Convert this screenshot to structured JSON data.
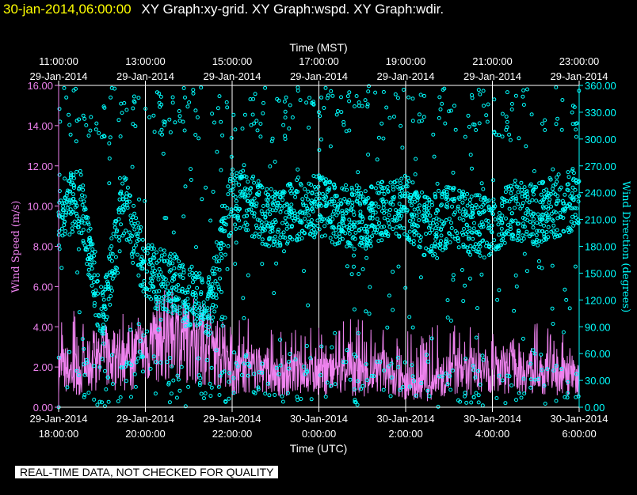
{
  "header": {
    "timestamp": "30-jan-2014,06:00:00",
    "graphs": "XY Graph:xy-grid.  XY Graph:wspd.  XY Graph:wdir."
  },
  "footer": {
    "qc_note": "REAL-TIME DATA, NOT CHECKED FOR QUALITY"
  },
  "chart_data": {
    "type": "scatter",
    "top_axis": {
      "label": "Time (MST)",
      "ticks": [
        {
          "time": "11:00:00",
          "date": "29-Jan-2014"
        },
        {
          "time": "13:00:00",
          "date": "29-Jan-2014"
        },
        {
          "time": "15:00:00",
          "date": "29-Jan-2014"
        },
        {
          "time": "17:00:00",
          "date": "29-Jan-2014"
        },
        {
          "time": "19:00:00",
          "date": "29-Jan-2014"
        },
        {
          "time": "21:00:00",
          "date": "29-Jan-2014"
        },
        {
          "time": "23:00:00",
          "date": "29-Jan-2014"
        }
      ]
    },
    "bottom_axis": {
      "label": "Time (UTC)",
      "ticks": [
        {
          "date": "29-Jan-2014",
          "time": "18:00:00"
        },
        {
          "date": "29-Jan-2014",
          "time": "20:00:00"
        },
        {
          "date": "29-Jan-2014",
          "time": "22:00:00"
        },
        {
          "date": "30-Jan-2014",
          "time": "0:00:00"
        },
        {
          "date": "30-Jan-2014",
          "time": "2:00:00"
        },
        {
          "date": "30-Jan-2014",
          "time": "4:00:00"
        },
        {
          "date": "30-Jan-2014",
          "time": "6:00:00"
        }
      ],
      "range": [
        "2014-01-29 18:00:00",
        "2014-01-30 06:00:00"
      ]
    },
    "left_axis": {
      "label": "Wind Speed (m/s)",
      "color": "#ee82ee",
      "range": [
        0,
        16
      ],
      "tick_labels": [
        "0.00",
        "2.00",
        "4.00",
        "6.00",
        "8.00",
        "10.00",
        "12.00",
        "14.00",
        "16.00"
      ]
    },
    "right_axis": {
      "label": "Wind Direction (degrees)",
      "color": "#00ffff",
      "range": [
        0,
        360
      ],
      "tick_labels": [
        "0.00",
        "30.00",
        "60.00",
        "90.00",
        "120.00",
        "150.00",
        "180.00",
        "210.00",
        "240.00",
        "270.00",
        "300.00",
        "330.00",
        "360.00"
      ]
    },
    "grid": true,
    "series": [
      {
        "name": "wspd",
        "render": "line",
        "color": "#ee82ee",
        "x_hours_utc": [
          18.0,
          18.5,
          19.0,
          19.5,
          20.0,
          20.5,
          21.0,
          21.5,
          22.0,
          22.5,
          23.0,
          23.5,
          24.0,
          24.5,
          25.0,
          25.5,
          26.0,
          26.5,
          27.0,
          27.5,
          28.0,
          28.5,
          29.0,
          29.5,
          30.0
        ],
        "values": [
          1.8,
          1.6,
          2.4,
          2.0,
          2.8,
          3.4,
          3.2,
          2.9,
          1.5,
          1.8,
          1.4,
          1.6,
          1.6,
          1.5,
          1.4,
          1.7,
          0.9,
          0.8,
          1.6,
          1.5,
          1.7,
          1.9,
          1.6,
          1.5,
          1.3
        ],
        "values_max": [
          5.5,
          4.5,
          4.2,
          4.8,
          4.8,
          5.2,
          4.8,
          4.5,
          4.4,
          4.5,
          3.8,
          3.9,
          4.5,
          4.3,
          4.5,
          4.0,
          4.3,
          4.0,
          4.2,
          4.0,
          3.8,
          3.6,
          4.2,
          3.8,
          4.7
        ]
      },
      {
        "name": "wdir",
        "render": "scatter",
        "color": "#00ffff",
        "x_hours_utc": [
          18.0,
          18.5,
          19.0,
          19.5,
          20.0,
          20.5,
          21.0,
          21.5,
          22.0,
          22.5,
          23.0,
          23.5,
          24.0,
          24.5,
          25.0,
          25.5,
          26.0,
          26.5,
          27.0,
          27.5,
          28.0,
          28.5,
          29.0,
          29.5,
          30.0
        ],
        "values": [
          225,
          230,
          95,
          230,
          150,
          140,
          125,
          115,
          235,
          225,
          210,
          220,
          225,
          215,
          210,
          220,
          225,
          200,
          215,
          205,
          200,
          220,
          215,
          225,
          235
        ]
      }
    ]
  }
}
